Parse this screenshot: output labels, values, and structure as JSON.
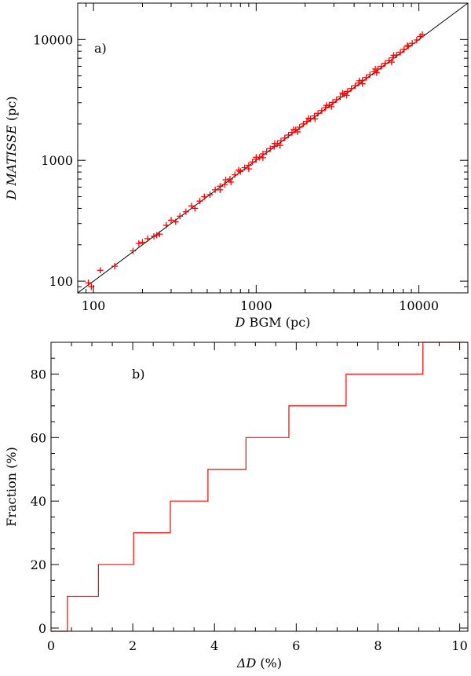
{
  "chart_data": [
    {
      "panel": "a)",
      "type": "scatter",
      "xlabel": {
        "italic": "D",
        "rest": " BGM (pc)"
      },
      "ylabel": {
        "italic": "D MATISSE",
        "rest": " (pc)"
      },
      "xscale": "log",
      "yscale": "log",
      "xlim": [
        80,
        20000
      ],
      "ylim": [
        80,
        20000
      ],
      "xticks": [
        {
          "value": 100,
          "label": "100"
        },
        {
          "value": 1000,
          "label": "1000"
        },
        {
          "value": 10000,
          "label": "10000"
        }
      ],
      "yticks": [
        {
          "value": 100,
          "label": "100"
        },
        {
          "value": 1000,
          "label": "1000"
        },
        {
          "value": 10000,
          "label": "10000"
        }
      ],
      "reference_line": "y = x",
      "marker": "+",
      "series_colors": {
        "points": "#ff0000",
        "reference_line": "#000000"
      },
      "points": [
        [
          93,
          97
        ],
        [
          97,
          90
        ],
        [
          110,
          123
        ],
        [
          135,
          133
        ],
        [
          175,
          178
        ],
        [
          190,
          205
        ],
        [
          200,
          210
        ],
        [
          215,
          225
        ],
        [
          235,
          235
        ],
        [
          245,
          240
        ],
        [
          255,
          245
        ],
        [
          280,
          290
        ],
        [
          300,
          320
        ],
        [
          320,
          310
        ],
        [
          340,
          345
        ],
        [
          370,
          375
        ],
        [
          400,
          420
        ],
        [
          420,
          400
        ],
        [
          450,
          460
        ],
        [
          480,
          500
        ],
        [
          520,
          520
        ],
        [
          560,
          570
        ],
        [
          600,
          610
        ],
        [
          640,
          630
        ],
        [
          690,
          700
        ],
        [
          740,
          760
        ],
        [
          800,
          810
        ],
        [
          850,
          870
        ],
        [
          900,
          910
        ],
        [
          950,
          970
        ],
        [
          1000,
          1020
        ],
        [
          1050,
          1060
        ],
        [
          1100,
          1130
        ],
        [
          1160,
          1180
        ],
        [
          1220,
          1250
        ],
        [
          1290,
          1300
        ],
        [
          1350,
          1380
        ],
        [
          1420,
          1450
        ],
        [
          1500,
          1530
        ],
        [
          1580,
          1620
        ],
        [
          1660,
          1700
        ],
        [
          1750,
          1790
        ],
        [
          1850,
          1880
        ],
        [
          1950,
          2000
        ],
        [
          2050,
          2100
        ],
        [
          2160,
          2200
        ],
        [
          2280,
          2330
        ],
        [
          2400,
          2450
        ],
        [
          2530,
          2580
        ],
        [
          2670,
          2720
        ],
        [
          2810,
          2870
        ],
        [
          2960,
          3020
        ],
        [
          3120,
          3180
        ],
        [
          3290,
          3350
        ],
        [
          3470,
          3530
        ],
        [
          3650,
          3720
        ],
        [
          3850,
          3930
        ],
        [
          4060,
          4140
        ],
        [
          4280,
          4360
        ],
        [
          4500,
          4600
        ],
        [
          4750,
          4850
        ],
        [
          5000,
          5100
        ],
        [
          5300,
          5400
        ],
        [
          5600,
          5700
        ],
        [
          5900,
          6000
        ],
        [
          6200,
          6350
        ],
        [
          6550,
          6700
        ],
        [
          6900,
          7050
        ],
        [
          7300,
          7450
        ],
        [
          7700,
          7850
        ],
        [
          8100,
          8300
        ],
        [
          8600,
          8800
        ],
        [
          9100,
          9300
        ],
        [
          9700,
          9900
        ],
        [
          10200,
          10600
        ],
        [
          10500,
          11000
        ],
        [
          600,
          570
        ],
        [
          700,
          660
        ],
        [
          900,
          850
        ],
        [
          1100,
          1050
        ],
        [
          1400,
          1330
        ],
        [
          1800,
          1720
        ],
        [
          2300,
          2200
        ],
        [
          2900,
          2780
        ],
        [
          3600,
          3450
        ],
        [
          4500,
          4300
        ],
        [
          5500,
          5300
        ],
        [
          6800,
          6500
        ],
        [
          650,
          690
        ],
        [
          780,
          830
        ],
        [
          1000,
          1060
        ],
        [
          1300,
          1380
        ],
        [
          1700,
          1800
        ],
        [
          2100,
          2230
        ],
        [
          2700,
          2850
        ],
        [
          3400,
          3600
        ],
        [
          4300,
          4550
        ],
        [
          5400,
          5700
        ],
        [
          7000,
          7400
        ],
        [
          8500,
          8900
        ]
      ]
    },
    {
      "panel": "b)",
      "type": "line",
      "step": true,
      "xlabel": {
        "italic": "ΔD",
        "rest": " (%)"
      },
      "ylabel": {
        "italic": "",
        "rest": "Fraction (%)"
      },
      "xlim": [
        0,
        10.2
      ],
      "ylim": [
        -1,
        90
      ],
      "xticks": [
        {
          "value": 0,
          "label": "0"
        },
        {
          "value": 2,
          "label": "2"
        },
        {
          "value": 4,
          "label": "4"
        },
        {
          "value": 6,
          "label": "6"
        },
        {
          "value": 8,
          "label": "8"
        },
        {
          "value": 10,
          "label": "10"
        }
      ],
      "yticks": [
        {
          "value": 0,
          "label": "0"
        },
        {
          "value": 20,
          "label": "20"
        },
        {
          "value": 40,
          "label": "40"
        },
        {
          "value": 60,
          "label": "60"
        },
        {
          "value": 80,
          "label": "80"
        }
      ],
      "line_color": "#ff0000",
      "steps": [
        {
          "x": 0.4,
          "y": 10
        },
        {
          "x": 1.16,
          "y": 20
        },
        {
          "x": 2.02,
          "y": 30
        },
        {
          "x": 2.92,
          "y": 40
        },
        {
          "x": 3.84,
          "y": 50
        },
        {
          "x": 4.77,
          "y": 60
        },
        {
          "x": 5.82,
          "y": 70
        },
        {
          "x": 7.22,
          "y": 80
        },
        {
          "x": 9.1,
          "y": 90
        }
      ]
    }
  ]
}
